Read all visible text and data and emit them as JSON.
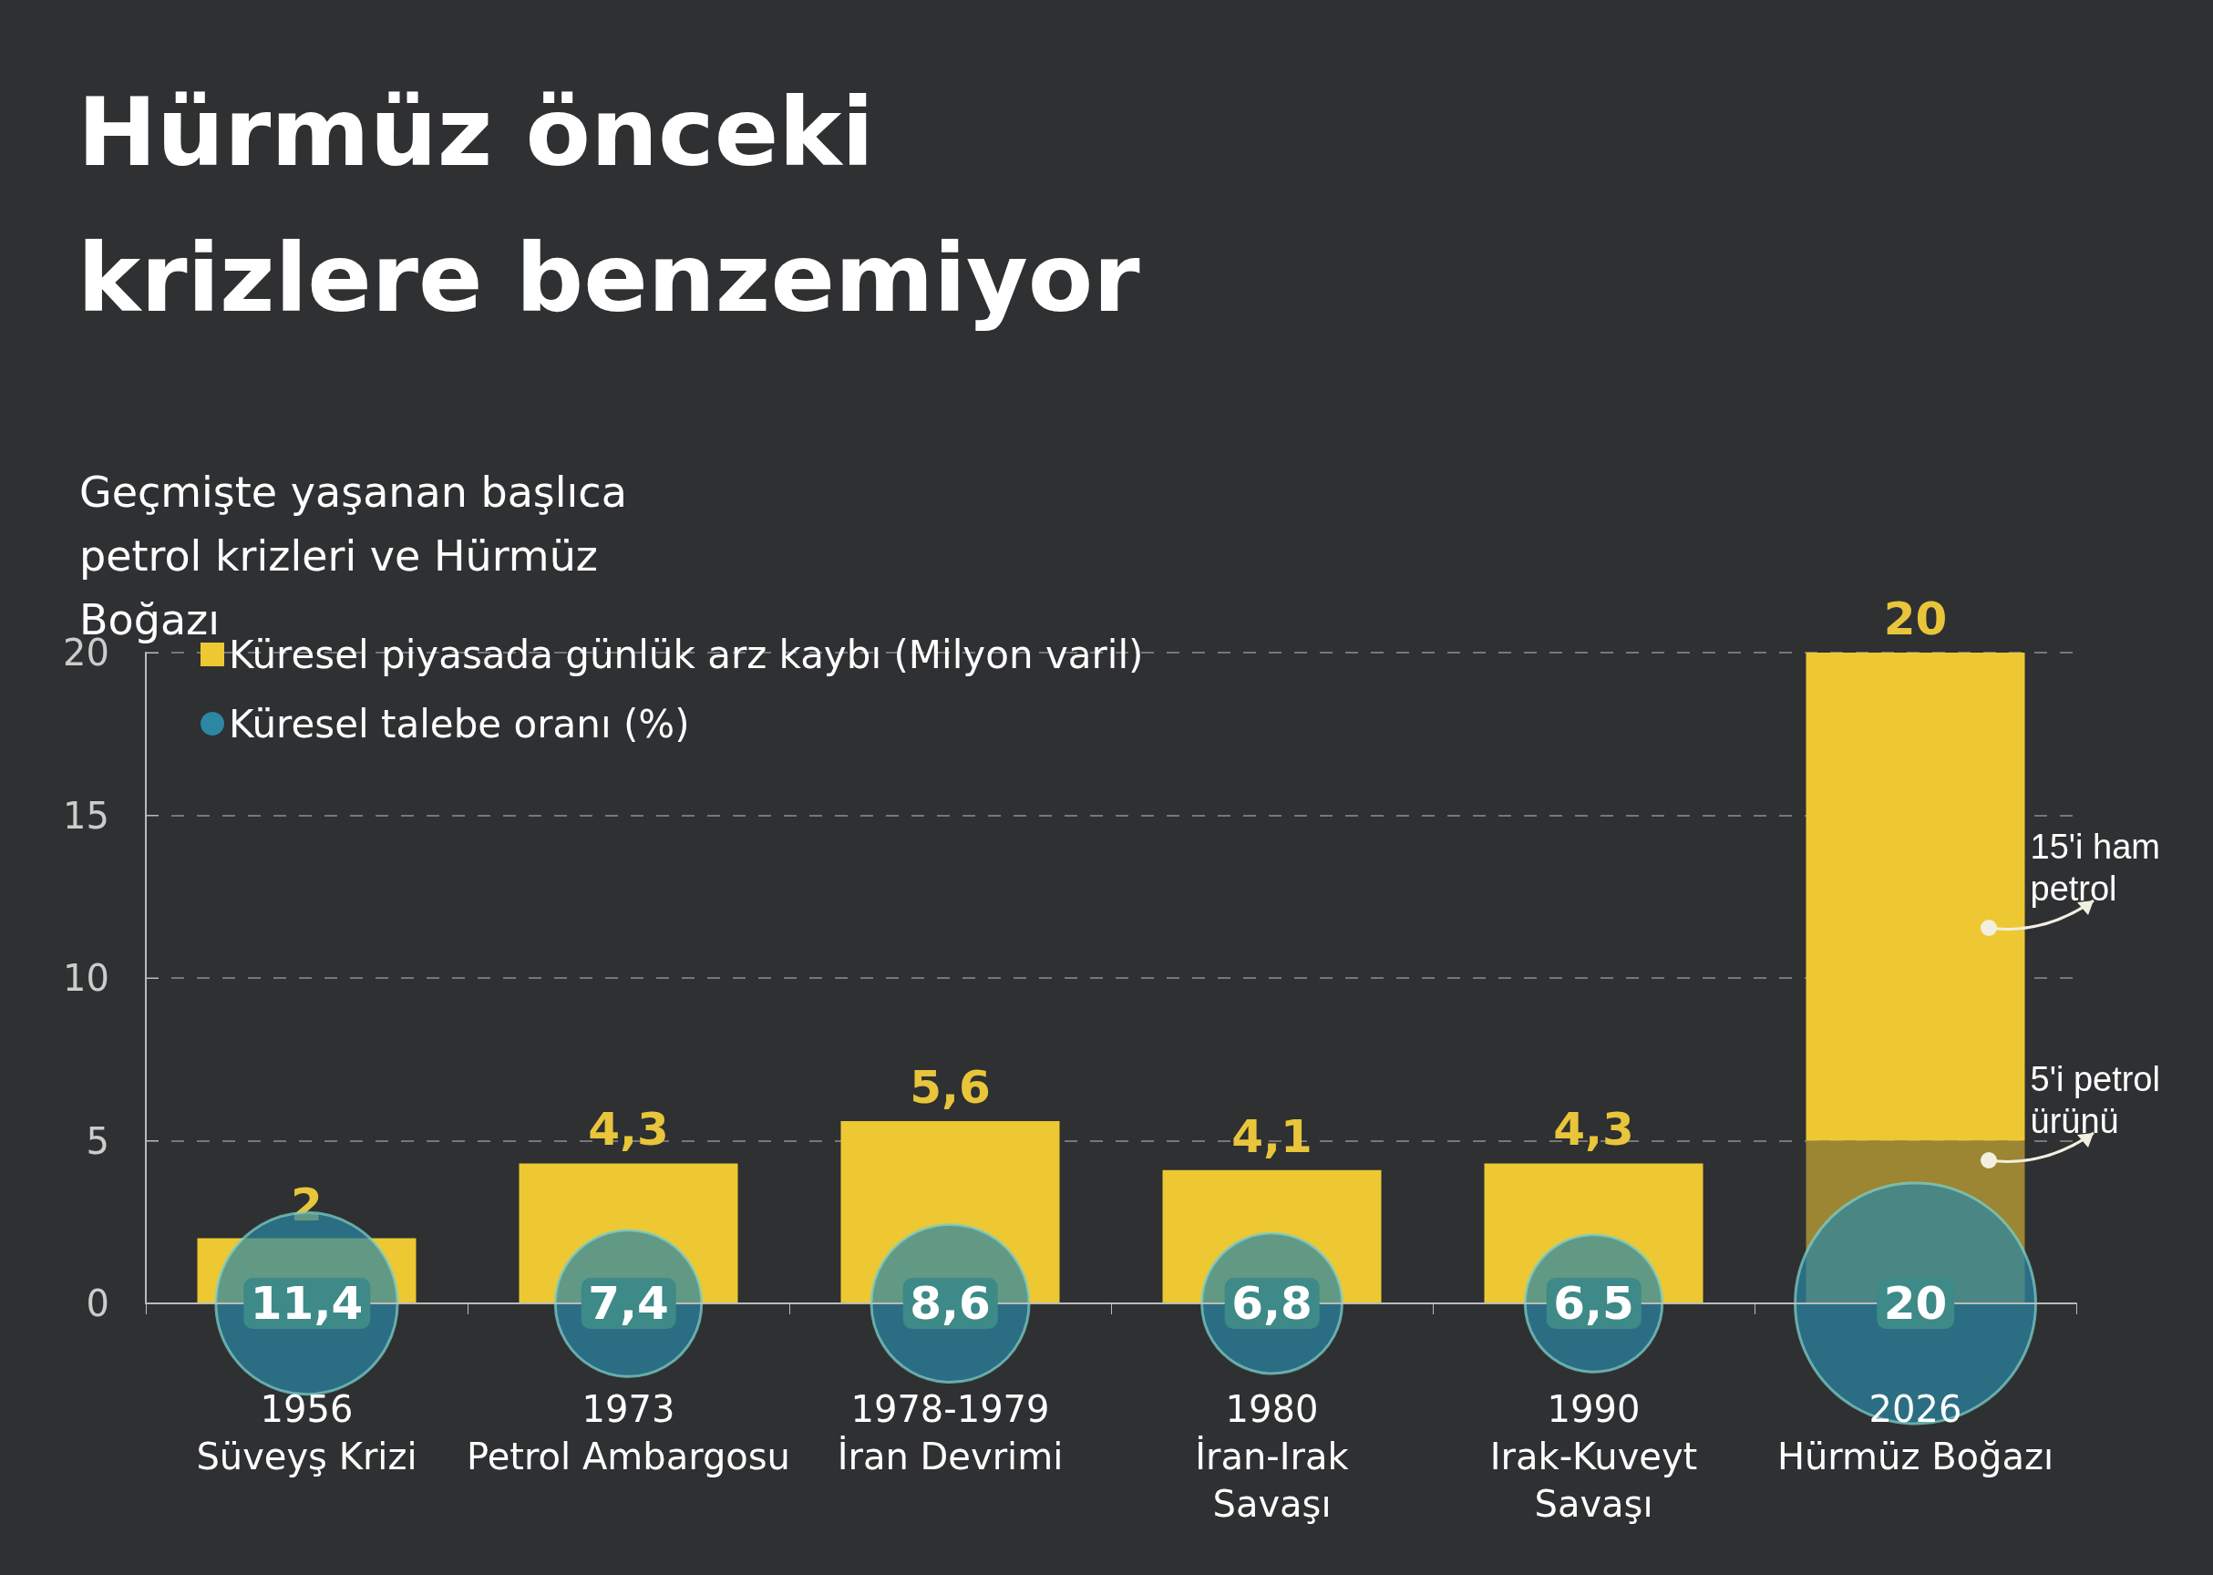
{
  "chart_data": {
    "type": "bar",
    "title": "Hürmüz önceki krizlere benzemiyor",
    "subtitle": "Geçmişte yaşanan başlıca petrol krizleri ve Hürmüz Boğazı",
    "categories": [
      "1956\nSüveyş Krizi",
      "1973\nPetrol Ambargosu",
      "1978-1979\nİran Devrimi",
      "1980\nİran-Irak\nSavaşı",
      "1990\nIrak-Kuveyt\nSavaşı",
      "2026\nHürmüz Boğazı"
    ],
    "series": [
      {
        "name": "Küresel piyasada günlük arz kaybı (Milyon varil)",
        "color": "#edc832",
        "colors": [
          "#edc832",
          "#edc832",
          "#edc832",
          "#edc832",
          "#edc832",
          "#9c8533"
        ],
        "values": [
          2,
          4.3,
          5.6,
          4.1,
          4.3,
          5
        ],
        "value_labels": [
          "2",
          "4,3",
          "5,6",
          "4,1",
          "4,3",
          null
        ]
      },
      {
        "color": "#edc832",
        "values": [
          null,
          null,
          null,
          null,
          null,
          15
        ]
      },
      {
        "name": "Küresel talebe oranı (%)",
        "type": "bubble",
        "color": "#2b87a3",
        "values": [
          0,
          0,
          0,
          0,
          0,
          0
        ],
        "sizes": [
          0.57,
          0.37,
          0.43,
          0.34,
          0.325,
          1
        ]
      }
    ],
    "stacked": true,
    "totals": [
      null,
      null,
      null,
      null,
      null,
      "20"
    ],
    "ylim": [
      0,
      20
    ],
    "yticks": [
      0,
      5,
      10,
      15,
      20
    ],
    "grid": "y",
    "legend": "top left",
    "annotations": [
      "15'i ham petrol",
      "5'i petrol ürünü",
      {
        "text": "11,4",
        "x": "1956\nSüveyş Krizi",
        "y": 0
      },
      {
        "text": "7,4",
        "x": "1973\nPetrol Ambargosu",
        "y": 0
      },
      {
        "text": "8,6",
        "x": "1978-1979\nİran Devrimi",
        "y": 0
      },
      {
        "text": "6,8",
        "x": "1980\nİran-Irak\nSavaşı",
        "y": 0
      },
      {
        "text": "6,5",
        "x": "1990\nIrak-Kuveyt\nSavaşı",
        "y": 0
      },
      {
        "text": "20",
        "x": "2026\nHürmüz Boğazı",
        "y": 0
      }
    ]
  }
}
